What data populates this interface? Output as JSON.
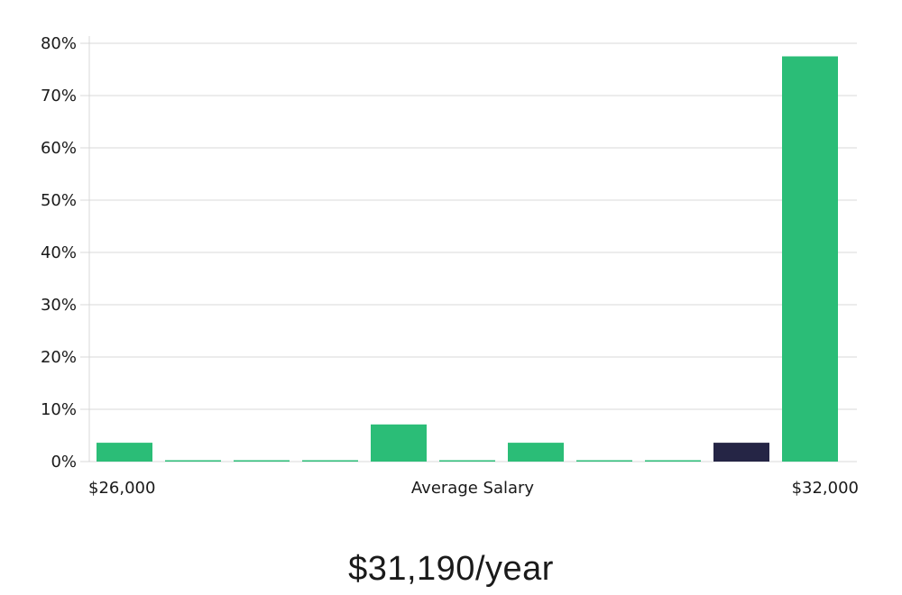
{
  "chart_data": {
    "type": "bar",
    "title": "",
    "xlabel": "Average Salary",
    "ylabel": "",
    "x_min_label": "$26,000",
    "x_max_label": "$32,000",
    "ylim": [
      0,
      80
    ],
    "yticks": [
      0,
      10,
      20,
      30,
      40,
      50,
      60,
      70,
      80
    ],
    "ytick_labels": [
      "0%",
      "10%",
      "20%",
      "30%",
      "40%",
      "50%",
      "60%",
      "70%",
      "80%"
    ],
    "grid": true,
    "values": [
      3.6,
      0.2,
      0.2,
      0.2,
      7.1,
      0.2,
      3.6,
      0.2,
      0.2,
      3.6,
      77.5
    ],
    "highlight_index": 9,
    "colors": {
      "bar": "#2bbd77",
      "highlight": "#252545",
      "grid": "#d9d9d9"
    }
  },
  "salary": {
    "display": "$31,190/year"
  }
}
